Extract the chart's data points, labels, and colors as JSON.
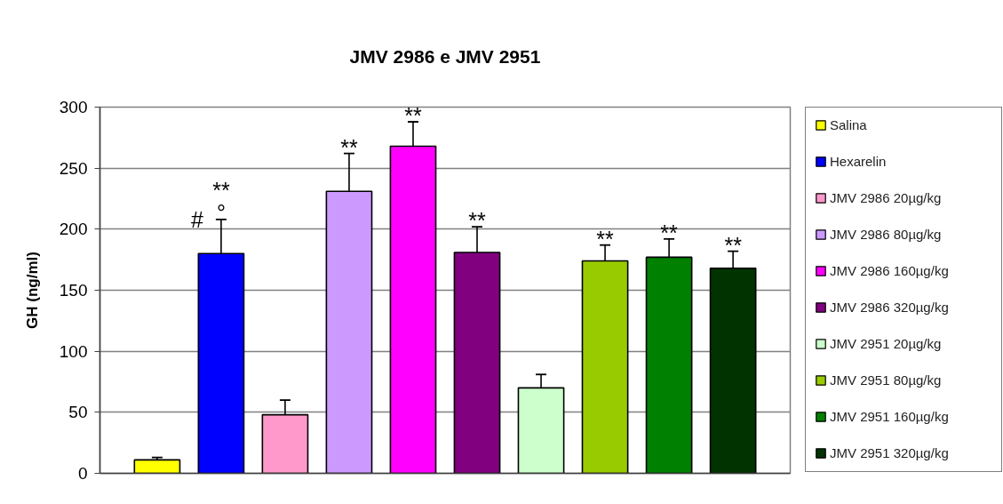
{
  "chart_data": {
    "type": "bar",
    "title": "JMV 2986 e JMV 2951",
    "ylabel": "GH (ng/ml)",
    "categories": [
      null
    ],
    "series": [
      {
        "name": "Salina",
        "color": "#ffff00",
        "values": [
          11
        ],
        "errors": [
          [
            11,
            13
          ]
        ],
        "value_labels": [
          null
        ]
      },
      {
        "name": "Hexarelin",
        "color": "#0000ff",
        "values": [
          180
        ],
        "errors": [
          [
            180,
            208
          ]
        ],
        "value_labels": [
          "**"
        ]
      },
      {
        "name": "JMV 2986 20µg/kg",
        "color": "#ff99cc",
        "values": [
          48
        ],
        "errors": [
          [
            48,
            60
          ]
        ],
        "value_labels": [
          null
        ]
      },
      {
        "name": "JMV 2986 80µg/kg",
        "color": "#cc99ff",
        "values": [
          231
        ],
        "errors": [
          [
            231,
            262
          ]
        ],
        "value_labels": [
          "**"
        ]
      },
      {
        "name": "JMV 2986 160µg/kg",
        "color": "#ff00ff",
        "values": [
          268
        ],
        "errors": [
          [
            268,
            288
          ]
        ],
        "value_labels": [
          "**"
        ]
      },
      {
        "name": "JMV 2986 320µg/kg",
        "color": "#800080",
        "values": [
          181
        ],
        "errors": [
          [
            181,
            202
          ]
        ],
        "value_labels": [
          "**"
        ]
      },
      {
        "name": "JMV 2951 20µg/kg",
        "color": "#ccffcc",
        "values": [
          70
        ],
        "errors": [
          [
            70,
            81
          ]
        ],
        "value_labels": [
          null
        ]
      },
      {
        "name": "JMV 2951 80µg/kg",
        "color": "#99cc00",
        "values": [
          174
        ],
        "errors": [
          [
            174,
            187
          ]
        ],
        "value_labels": [
          "**"
        ]
      },
      {
        "name": "JMV 2951 160µg/kg",
        "color": "#008000",
        "values": [
          177
        ],
        "errors": [
          [
            177,
            192
          ]
        ],
        "value_labels": [
          "**"
        ]
      },
      {
        "name": "JMV 2951 320µg/kg",
        "color": "#003300",
        "values": [
          168
        ],
        "errors": [
          [
            168,
            182
          ]
        ],
        "value_labels": [
          "**"
        ]
      }
    ],
    "ylim": [
      0,
      300
    ],
    "yticks": [
      0,
      50,
      100,
      150,
      200,
      250,
      300
    ],
    "grid": "y",
    "legend": "right",
    "tick_labels": "y",
    "annotations": [
      "°",
      "#"
    ]
  }
}
